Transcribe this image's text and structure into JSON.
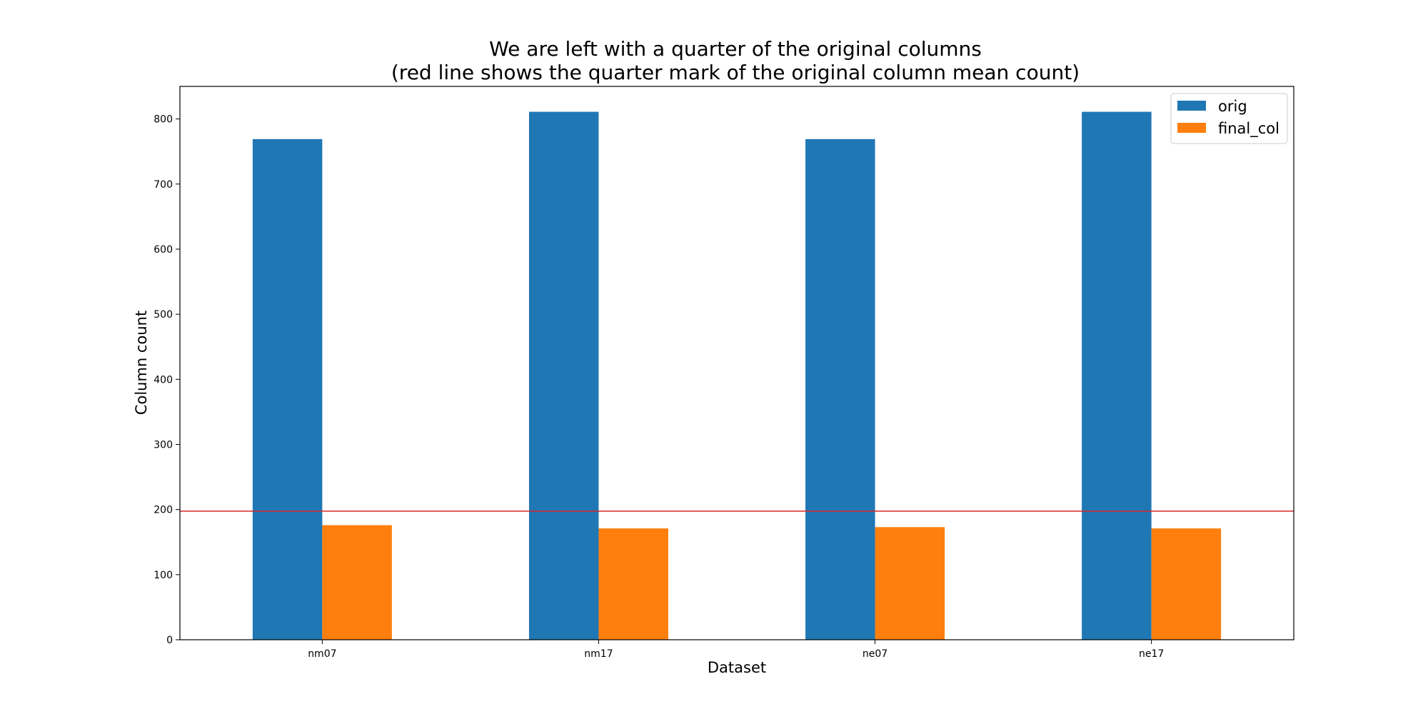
{
  "chart_data": {
    "type": "bar",
    "title": "We are left with a quarter of the original columns",
    "subtitle": "(red line shows the quarter mark of the original column mean count)",
    "xlabel": "Dataset",
    "ylabel": "Column count",
    "categories": [
      "nm07",
      "nm17",
      "ne07",
      "ne17"
    ],
    "series": [
      {
        "name": "orig",
        "color": "#1f77b4",
        "values": [
          769,
          811,
          769,
          811
        ]
      },
      {
        "name": "final_col",
        "color": "#ff7f0e",
        "values": [
          176,
          171,
          173,
          171
        ]
      }
    ],
    "ylim": [
      0,
      850
    ],
    "yticks": [
      0,
      100,
      200,
      300,
      400,
      500,
      600,
      700,
      800
    ],
    "reference_line": {
      "value": 197.5,
      "color": "#d62728"
    },
    "grid": false,
    "legend_position": "top-right"
  }
}
